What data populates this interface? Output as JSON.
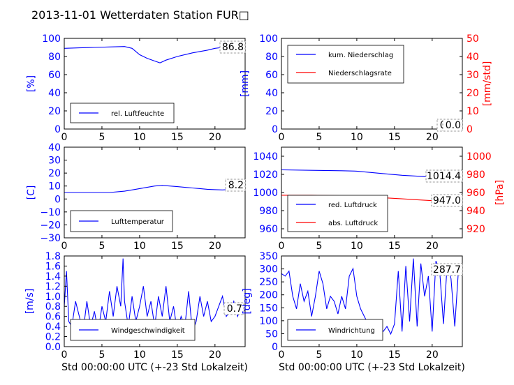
{
  "title": "2013-11-01 Wetterdaten Station FUR□",
  "colors": {
    "blue": "#0000ff",
    "red": "#ff0000",
    "black": "#000000"
  },
  "chart_data": [
    {
      "id": "humidity",
      "type": "line",
      "ylabel": "[%]",
      "xlabel": "",
      "xlim": [
        0,
        24
      ],
      "ylim": [
        0,
        100
      ],
      "xticks": [
        "0",
        "5",
        "10",
        "15",
        "20"
      ],
      "yticks": [
        "0",
        "20",
        "40",
        "60",
        "80",
        "100"
      ],
      "legend": {
        "placement": "lower-left",
        "entries": [
          "rel. Luftfeuchte"
        ]
      },
      "annotation": "86.8",
      "series": [
        {
          "name": "rel. Luftfeuchte",
          "x": [
            0,
            2,
            4,
            6,
            8,
            9,
            10,
            11,
            12,
            12.7,
            13.5,
            15,
            17,
            19,
            20,
            21,
            22,
            23,
            24
          ],
          "values": [
            89,
            89.5,
            90,
            90.5,
            91,
            89,
            82,
            78,
            75,
            73,
            76,
            80,
            84,
            87,
            89,
            90,
            90.5,
            91,
            91
          ]
        }
      ]
    },
    {
      "id": "precip",
      "type": "line",
      "ylabel": "[mm]",
      "ylabel_right": "[mm/std]",
      "xlabel": "",
      "xlim": [
        0,
        24
      ],
      "ylim": [
        0,
        100
      ],
      "ylim_right": [
        0,
        50
      ],
      "xticks": [
        "0",
        "5",
        "10",
        "15",
        "20"
      ],
      "yticks": [
        "0",
        "20",
        "40",
        "60",
        "80",
        "100"
      ],
      "yticks_right": [
        "0",
        "10",
        "20",
        "30",
        "40",
        "50"
      ],
      "legend": {
        "placement": "upper-left",
        "entries": [
          "kum. Niederschlag",
          "Niederschlagsrate"
        ]
      },
      "annotation": "0.0",
      "annotation2": "0.0",
      "series": [
        {
          "name": "kum. Niederschlag",
          "x": [
            0,
            24
          ],
          "values": [
            0,
            0
          ]
        },
        {
          "name": "Niederschlagsrate",
          "x": [
            0,
            24
          ],
          "values": [
            0,
            0
          ]
        }
      ]
    },
    {
      "id": "temperature",
      "type": "line",
      "ylabel": "[C]",
      "xlabel": "",
      "xlim": [
        0,
        24
      ],
      "ylim": [
        -30,
        40
      ],
      "xticks": [
        "0",
        "5",
        "10",
        "15",
        "20"
      ],
      "yticks": [
        "−30",
        "−20",
        "−10",
        "0",
        "10",
        "20",
        "30",
        "40"
      ],
      "legend": {
        "placement": "lower-left",
        "entries": [
          "Lufttemperatur"
        ]
      },
      "annotation": "8.2",
      "series": [
        {
          "name": "Lufttemperatur",
          "x": [
            0,
            2,
            4,
            6,
            7,
            8,
            9,
            10,
            11,
            12,
            13,
            14,
            15,
            16,
            17,
            18,
            19,
            20,
            21,
            22,
            23,
            24
          ],
          "values": [
            5,
            5,
            5,
            5,
            5.5,
            6,
            7,
            8,
            9,
            10,
            10.5,
            10,
            9.5,
            9,
            8.5,
            8,
            7.5,
            7.2,
            7,
            7.3,
            7.8,
            8
          ]
        }
      ]
    },
    {
      "id": "pressure",
      "type": "line",
      "ylabel": "",
      "ylabel_right": "[hPa]",
      "xlabel": "",
      "xlim": [
        0,
        24
      ],
      "ylim": [
        950,
        1050
      ],
      "ylim_right": [
        910,
        1010
      ],
      "xticks": [
        "0",
        "5",
        "10",
        "15",
        "20"
      ],
      "yticks": [
        "960",
        "980",
        "1000",
        "1020",
        "1040"
      ],
      "yticks_right": [
        "920",
        "940",
        "960",
        "980",
        "1000"
      ],
      "legend": {
        "placement": "lower-left",
        "entries": [
          "red. Luftdruck",
          "abs. Luftdruck"
        ]
      },
      "annotation": "1014.4",
      "annotation2": "947.0",
      "series": [
        {
          "name": "red. Luftdruck",
          "axis": "left",
          "x": [
            0,
            4,
            8,
            10,
            12,
            14,
            16,
            18,
            20,
            22,
            24
          ],
          "values": [
            1025,
            1024.5,
            1024,
            1023.5,
            1022,
            1020.5,
            1019,
            1018,
            1017,
            1016,
            1015.5
          ]
        },
        {
          "name": "abs. Luftdruck",
          "axis": "left",
          "x": [
            0,
            4,
            8,
            10,
            12,
            14,
            16,
            18,
            20,
            22,
            24
          ],
          "values": [
            997,
            997,
            996.5,
            996,
            995,
            994,
            993,
            992,
            991,
            990,
            989.5
          ]
        }
      ]
    },
    {
      "id": "windspeed",
      "type": "line",
      "ylabel": "[m/s]",
      "xlabel": "Std 00:00:00 UTC (+-23 Std Lokalzeit)",
      "xlim": [
        0,
        24
      ],
      "ylim": [
        0,
        1.8
      ],
      "xticks": [
        "0",
        "5",
        "10",
        "15",
        "20"
      ],
      "yticks": [
        "0.0",
        "0.2",
        "0.4",
        "0.6",
        "0.8",
        "1.0",
        "1.2",
        "1.4",
        "1.6",
        "1.8"
      ],
      "legend": {
        "placement": "lower-center",
        "entries": [
          "Windgeschwindigkeit"
        ]
      },
      "annotation": "0.7",
      "series": [
        {
          "name": "Windgeschwindigkeit",
          "x": [
            0,
            0.3,
            0.6,
            1,
            1.5,
            2,
            2.5,
            3,
            3.5,
            4,
            4.5,
            5,
            5.5,
            6,
            6.5,
            7,
            7.5,
            7.8,
            8,
            8.5,
            9,
            9.5,
            10,
            10.5,
            11,
            11.5,
            12,
            12.5,
            13,
            13.5,
            14,
            14.5,
            15,
            15.5,
            16,
            16.5,
            17,
            17.5,
            18,
            18.5,
            19,
            19.5,
            20,
            20.5,
            21,
            21.5,
            22,
            22.5,
            23,
            23.5,
            24
          ],
          "values": [
            0.8,
            1.5,
            0.5,
            0.4,
            0.9,
            0.6,
            0.3,
            0.9,
            0.4,
            0.7,
            0.3,
            0.8,
            0.5,
            1.1,
            0.6,
            1.2,
            0.8,
            1.75,
            0.9,
            0.4,
            1.0,
            0.5,
            0.8,
            1.2,
            0.6,
            0.9,
            0.4,
            1.0,
            0.6,
            1.2,
            0.5,
            0.8,
            0.3,
            0.6,
            0.4,
            1.1,
            0.3,
            0.5,
            1.0,
            0.6,
            0.9,
            0.5,
            0.6,
            0.8,
            1.0,
            0.6,
            0.7,
            0.9,
            0.6,
            0.8,
            0.7
          ]
        }
      ]
    },
    {
      "id": "winddir",
      "type": "line",
      "ylabel": "[deg]",
      "xlabel": "Std 00:00:00 UTC (+-23 Std Lokalzeit)",
      "xlim": [
        0,
        24
      ],
      "ylim": [
        0,
        360
      ],
      "xticks": [
        "0",
        "5",
        "10",
        "15",
        "20"
      ],
      "yticks": [
        "0",
        "50",
        "100",
        "150",
        "200",
        "250",
        "300",
        "350"
      ],
      "legend": {
        "placement": "lower-left",
        "entries": [
          "Windrichtung"
        ]
      },
      "annotation": "287.7",
      "series": [
        {
          "name": "Windrichtung",
          "x": [
            0,
            0.5,
            1,
            1.5,
            2,
            2.5,
            3,
            3.5,
            4,
            4.5,
            5,
            5.5,
            6,
            6.5,
            7,
            7.5,
            8,
            8.5,
            9,
            9.5,
            10,
            10.5,
            11,
            11.5,
            12,
            12.5,
            13,
            13.5,
            14,
            14.5,
            15,
            15.5,
            16,
            16.5,
            17,
            17.5,
            18,
            18.5,
            19,
            19.5,
            20,
            20.5,
            21,
            21.5,
            22,
            22.5,
            23,
            23.5,
            24
          ],
          "values": [
            290,
            280,
            300,
            200,
            150,
            250,
            180,
            220,
            120,
            200,
            300,
            250,
            150,
            200,
            180,
            130,
            200,
            150,
            280,
            310,
            200,
            150,
            120,
            90,
            100,
            80,
            70,
            60,
            80,
            50,
            90,
            300,
            60,
            320,
            100,
            350,
            80,
            330,
            200,
            280,
            60,
            340,
            300,
            90,
            330,
            270,
            80,
            310,
            290
          ]
        }
      ]
    }
  ]
}
